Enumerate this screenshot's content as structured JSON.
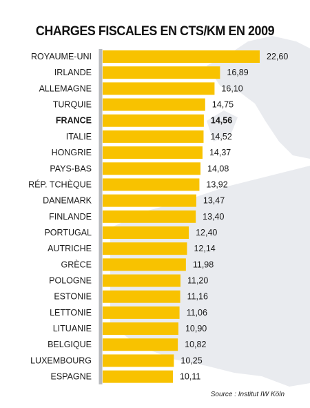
{
  "title": "CHARGES FISCALES EN CTS/KM EN 2009",
  "source": "Source : Institut IW Köln",
  "colors": {
    "bar": "#F8C200",
    "axis": "#B8BABD",
    "map": "#E9EBEF",
    "text": "#1A1A1A"
  },
  "highlight": "FRANCE",
  "chart_data": {
    "type": "bar",
    "orientation": "horizontal",
    "title": "CHARGES FISCALES EN CTS/KM EN 2009",
    "categories": [
      "ROYAUME-UNI",
      "IRLANDE",
      "ALLEMAGNE",
      "TURQUIE",
      "FRANCE",
      "ITALIE",
      "HONGRIE",
      "PAYS-BAS",
      "RÉP. TCHÈQUE",
      "DANEMARK",
      "FINLANDE",
      "PORTUGAL",
      "AUTRICHE",
      "GRÈCE",
      "POLOGNE",
      "ESTONIE",
      "LETTONIE",
      "LITUANIE",
      "BELGIQUE",
      "LUXEMBOURG",
      "ESPAGNE"
    ],
    "values": [
      22.6,
      16.89,
      16.1,
      14.75,
      14.56,
      14.52,
      14.37,
      14.08,
      13.92,
      13.47,
      13.4,
      12.4,
      12.14,
      11.98,
      11.2,
      11.16,
      11.06,
      10.9,
      10.82,
      10.25,
      10.11
    ],
    "value_labels": [
      "22,60",
      "16,89",
      "16,10",
      "14,75",
      "14,56",
      "14,52",
      "14,37",
      "14,08",
      "13,92",
      "13,47",
      "13,40",
      "12,40",
      "12,14",
      "11,98",
      "11,20",
      "11,16",
      "11,06",
      "10,90",
      "10,82",
      "10,25",
      "10,11"
    ],
    "xlim": [
      0,
      22.6
    ],
    "grid": false,
    "legend": "none"
  }
}
